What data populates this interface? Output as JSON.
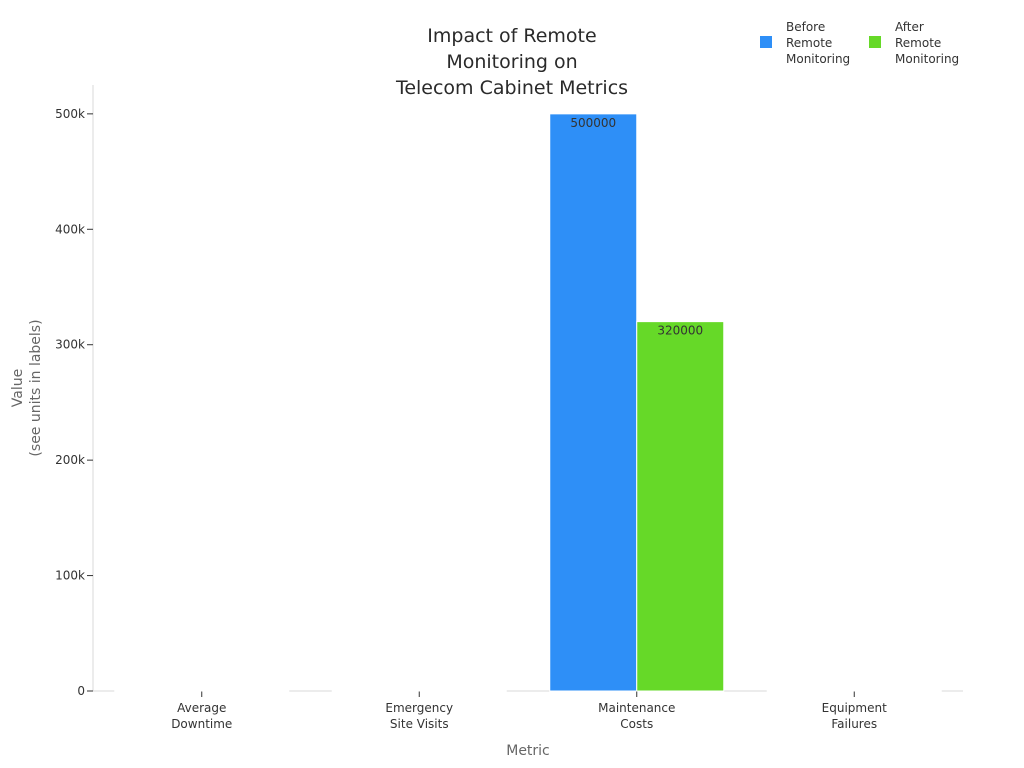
{
  "chart_data": {
    "type": "bar",
    "title": [
      "Impact of Remote",
      "Monitoring on",
      "Telecom Cabinet Metrics"
    ],
    "xlabel": "Metric",
    "ylabel": [
      "Value",
      "(see units in labels)"
    ],
    "categories": [
      [
        "Average",
        "Downtime"
      ],
      [
        "Emergency",
        "Site Visits"
      ],
      [
        "Maintenance",
        "Costs"
      ],
      [
        "Equipment",
        "Failures"
      ]
    ],
    "series": [
      {
        "name": [
          "Before",
          "Remote",
          "Monitoring"
        ],
        "color": "#2e8ff7",
        "values": [
          0,
          0,
          500000,
          0
        ],
        "labels": [
          "",
          "",
          "500000",
          ""
        ]
      },
      {
        "name": [
          "After",
          "Remote",
          "Monitoring"
        ],
        "color": "#66d928",
        "values": [
          0,
          0,
          320000,
          0
        ],
        "labels": [
          "",
          "",
          "320000",
          ""
        ]
      }
    ],
    "ylim": [
      0,
      525000
    ],
    "yticks": [
      0,
      100000,
      200000,
      300000,
      400000,
      500000
    ],
    "ytick_labels": [
      "0",
      "100k",
      "200k",
      "300k",
      "400k",
      "500k"
    ],
    "grid": false,
    "legend_position": "top-right"
  }
}
